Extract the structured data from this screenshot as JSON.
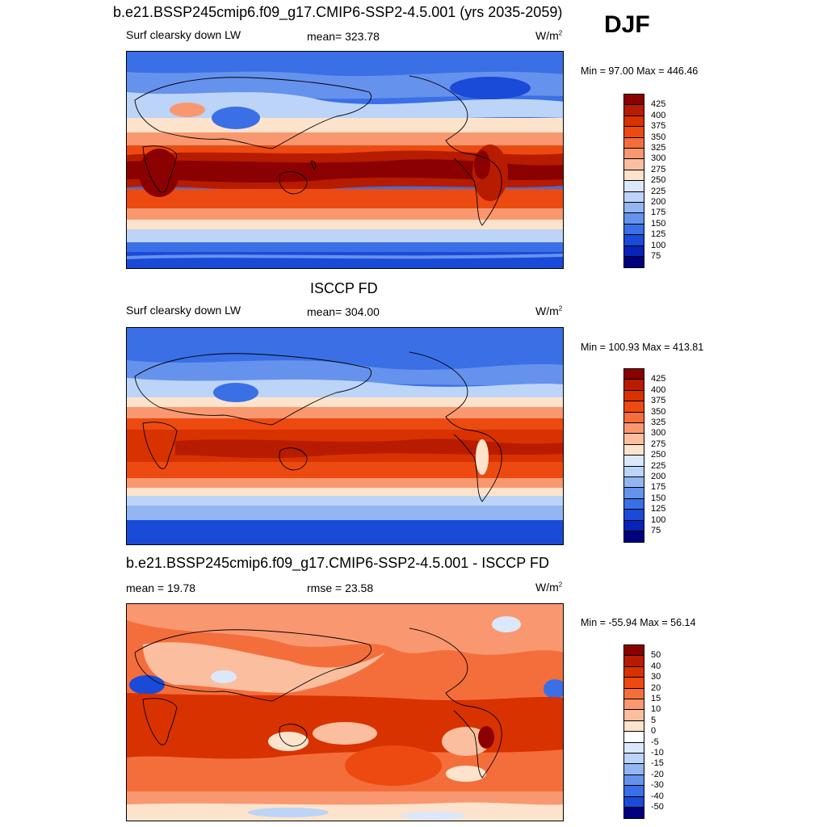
{
  "season": "DJF",
  "panels": [
    {
      "title": "b.e21.BSSP245cmip6.f09_g17.CMIP6-SSP2-4.5.001 (yrs 2035-2059)",
      "left_label": "Surf clearsky down LW",
      "center_label": "mean= 323.78",
      "units": "W/m",
      "units_sup": "2",
      "minmax": "Min =  97.00 Max = 446.46",
      "colorbar_ticks": [
        "425",
        "400",
        "375",
        "350",
        "325",
        "300",
        "275",
        "250",
        "225",
        "200",
        "175",
        "150",
        "125",
        "100",
        "75"
      ]
    },
    {
      "title": "ISCCP FD",
      "left_label": "Surf clearsky down LW",
      "center_label": "mean= 304.00",
      "units": "W/m",
      "units_sup": "2",
      "minmax": "Min = 100.93 Max = 413.81",
      "colorbar_ticks": [
        "425",
        "400",
        "375",
        "350",
        "325",
        "300",
        "275",
        "250",
        "225",
        "200",
        "175",
        "150",
        "125",
        "100",
        "75"
      ]
    },
    {
      "title": "b.e21.BSSP245cmip6.f09_g17.CMIP6-SSP2-4.5.001 - ISCCP FD",
      "left_label": "mean =  19.78",
      "center_label": "rmse =  23.58",
      "units": "W/m",
      "units_sup": "2",
      "minmax": "Min = -55.94 Max =  56.14",
      "colorbar_ticks": [
        "50",
        "40",
        "30",
        "20",
        "15",
        "10",
        "5",
        "0",
        "-5",
        "-10",
        "-15",
        "-20",
        "-30",
        "-40",
        "-50"
      ]
    }
  ],
  "colors": {
    "abs_scale": [
      "#8b0000",
      "#b71c00",
      "#d83200",
      "#ec4a10",
      "#f46e3c",
      "#f99870",
      "#fbbf9f",
      "#fde3cc",
      "#dbe8fb",
      "#bcd4f7",
      "#93b6f2",
      "#6592ec",
      "#3a6fe6",
      "#1a4ad8",
      "#0624b8",
      "#000080"
    ],
    "diff_scale": [
      "#8b0000",
      "#b71c00",
      "#d83200",
      "#ec4a10",
      "#f46e3c",
      "#f99870",
      "#fbbf9f",
      "#fde3cc",
      "#ffffff",
      "#dbe8fb",
      "#bcd4f7",
      "#93b6f2",
      "#6592ec",
      "#3a6fe6",
      "#1a4ad8",
      "#000080"
    ]
  }
}
